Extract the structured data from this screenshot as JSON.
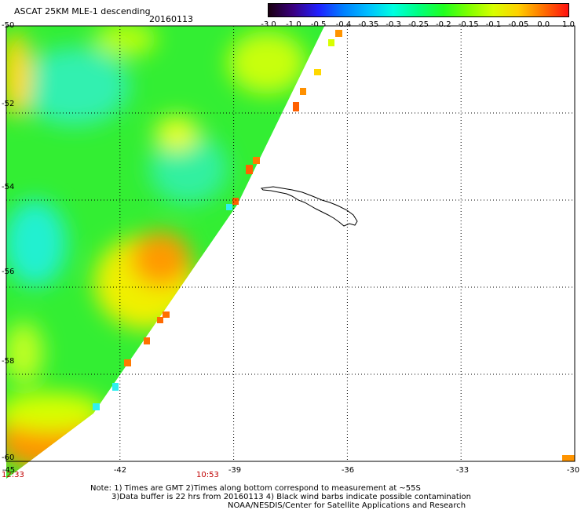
{
  "header": {
    "title": "ASCAT 25KM MLE-1 descending",
    "date": "20160113"
  },
  "colorbar": {
    "labels": [
      "-3.0",
      "-1.0",
      "-0.5",
      "-0.4",
      "-0.35",
      "-0.3",
      "-0.25",
      "-0.2",
      "-0.15",
      "-0.1",
      "-0.05",
      "0.0",
      "1.0"
    ],
    "colors": [
      "#1a0010",
      "#3a0080",
      "#2020ff",
      "#0080ff",
      "#00c0ff",
      "#00ffe0",
      "#00ff80",
      "#20ff20",
      "#80ff00",
      "#d8ff00",
      "#ffd000",
      "#ff7000",
      "#ff1010"
    ]
  },
  "axes": {
    "lat_labels": [
      "-50",
      "-52",
      "-54",
      "-56",
      "-58",
      "-60"
    ],
    "lon_labels": [
      "-45",
      "-42",
      "-39",
      "-36",
      "-33",
      "-30"
    ],
    "lat_range": [
      -60,
      -50
    ],
    "lon_range": [
      -45,
      -30
    ]
  },
  "times": {
    "left": "12:33",
    "mid": "10:53"
  },
  "notes": {
    "line1": "Note: 1) Times are GMT 2)Times along bottom correspond to measurement at ~55S",
    "line2": "3)Data buffer is 22 hrs from 20160113 4) Black wind barbs indicate possible contamination",
    "line3": "NOAA/NESDIS/Center for Satellite Applications and Research"
  },
  "map_data": {
    "swath_edge": [
      [
        -45,
        -50
      ],
      [
        -36.6,
        -50
      ],
      [
        -38.9,
        -54.1
      ],
      [
        -42.7,
        -58.9
      ],
      [
        -45,
        -60.4
      ]
    ],
    "yellow_area_center": [
      -41.4,
      -55.8
    ],
    "orange_area_center": [
      -44,
      -59.7
    ]
  }
}
